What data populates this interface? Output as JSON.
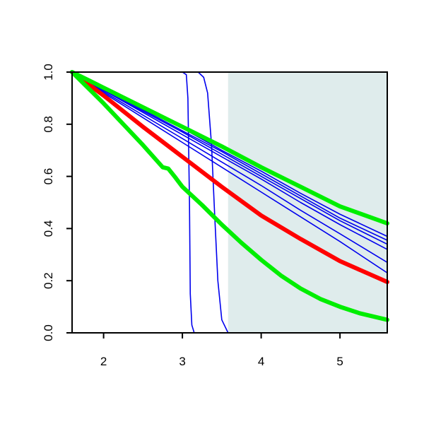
{
  "chart_data": {
    "type": "line",
    "title": "",
    "xlabel": "",
    "ylabel": "",
    "xlim": [
      1.6,
      5.6
    ],
    "ylim": [
      0.0,
      1.0
    ],
    "x_ticks": [
      2,
      3,
      4,
      5
    ],
    "y_ticks": [
      0.0,
      0.2,
      0.4,
      0.6,
      0.8,
      1.0
    ],
    "x_tick_labels": [
      "2",
      "3",
      "4",
      "5"
    ],
    "y_tick_labels": [
      "0.0",
      "0.2",
      "0.4",
      "0.6",
      "0.8",
      "1.0"
    ],
    "shaded_region": {
      "x_start": 3.58,
      "x_end": 5.6,
      "color": "#dfecec"
    },
    "grid": false,
    "legend": "none",
    "series": [
      {
        "color": "#0000ee",
        "weight": "thin",
        "x": [
          1.6,
          3.0,
          3.05,
          3.07,
          3.09,
          3.1,
          3.12,
          3.15,
          5.6
        ],
        "y": [
          1.0,
          1.0,
          0.99,
          0.9,
          0.5,
          0.15,
          0.03,
          0.0,
          0.0
        ]
      },
      {
        "color": "#0000ee",
        "weight": "thin",
        "x": [
          1.6,
          3.2,
          3.27,
          3.32,
          3.37,
          3.41,
          3.45,
          3.5,
          3.58,
          5.6
        ],
        "y": [
          1.0,
          1.0,
          0.98,
          0.92,
          0.72,
          0.45,
          0.2,
          0.05,
          0.0,
          0.0
        ]
      },
      {
        "color": "#0000ee",
        "weight": "thin",
        "x": [
          1.6,
          2.0,
          2.5,
          3.0,
          3.5,
          4.0,
          4.5,
          5.0,
          5.6
        ],
        "y": [
          1.0,
          0.935,
          0.86,
          0.785,
          0.7,
          0.62,
          0.535,
          0.455,
          0.37
        ]
      },
      {
        "color": "#0000ee",
        "weight": "thin",
        "x": [
          1.6,
          2.0,
          2.5,
          3.0,
          3.5,
          4.0,
          4.5,
          5.0,
          5.6
        ],
        "y": [
          1.0,
          0.935,
          0.855,
          0.775,
          0.695,
          0.61,
          0.525,
          0.44,
          0.355
        ]
      },
      {
        "color": "#0000ee",
        "weight": "thin",
        "x": [
          1.6,
          2.0,
          2.5,
          3.0,
          3.5,
          4.0,
          4.5,
          5.0,
          5.6
        ],
        "y": [
          1.0,
          0.93,
          0.85,
          0.77,
          0.685,
          0.6,
          0.515,
          0.43,
          0.34
        ]
      },
      {
        "color": "#0000ee",
        "weight": "thin",
        "x": [
          1.6,
          2.0,
          2.5,
          3.0,
          3.5,
          4.0,
          4.5,
          5.0,
          5.6
        ],
        "y": [
          1.0,
          0.93,
          0.845,
          0.76,
          0.675,
          0.59,
          0.5,
          0.415,
          0.32
        ]
      },
      {
        "color": "#0000ee",
        "weight": "thin",
        "x": [
          1.6,
          2.0,
          2.5,
          3.0,
          3.5,
          4.0,
          4.5,
          5.0,
          5.6
        ],
        "y": [
          1.0,
          0.925,
          0.835,
          0.745,
          0.655,
          0.565,
          0.47,
          0.38,
          0.27
        ]
      },
      {
        "color": "#0000ee",
        "weight": "thin",
        "x": [
          1.6,
          2.0,
          2.5,
          3.0,
          3.5,
          4.0,
          4.5,
          5.0,
          5.6
        ],
        "y": [
          1.0,
          0.92,
          0.825,
          0.73,
          0.635,
          0.54,
          0.445,
          0.35,
          0.23
        ]
      },
      {
        "color": "#ff0000",
        "weight": "thick",
        "x": [
          1.6,
          2.0,
          2.5,
          3.0,
          3.5,
          4.0,
          4.5,
          5.0,
          5.6
        ],
        "y": [
          1.0,
          0.91,
          0.79,
          0.675,
          0.56,
          0.45,
          0.36,
          0.275,
          0.195
        ]
      },
      {
        "color": "#00ee00",
        "weight": "thick",
        "x": [
          1.6,
          2.0,
          2.5,
          3.0,
          3.5,
          4.0,
          4.5,
          5.0,
          5.6
        ],
        "y": [
          1.0,
          0.94,
          0.865,
          0.79,
          0.715,
          0.635,
          0.56,
          0.485,
          0.42
        ]
      },
      {
        "color": "#00ee00",
        "weight": "thick",
        "x": [
          1.6,
          2.0,
          2.5,
          2.75,
          2.82,
          2.9,
          3.0,
          3.25,
          3.5,
          3.75,
          4.0,
          4.25,
          4.5,
          4.75,
          5.0,
          5.25,
          5.6
        ],
        "y": [
          1.0,
          0.88,
          0.72,
          0.635,
          0.63,
          0.6,
          0.56,
          0.49,
          0.415,
          0.345,
          0.28,
          0.22,
          0.17,
          0.13,
          0.1,
          0.075,
          0.05
        ]
      }
    ]
  }
}
